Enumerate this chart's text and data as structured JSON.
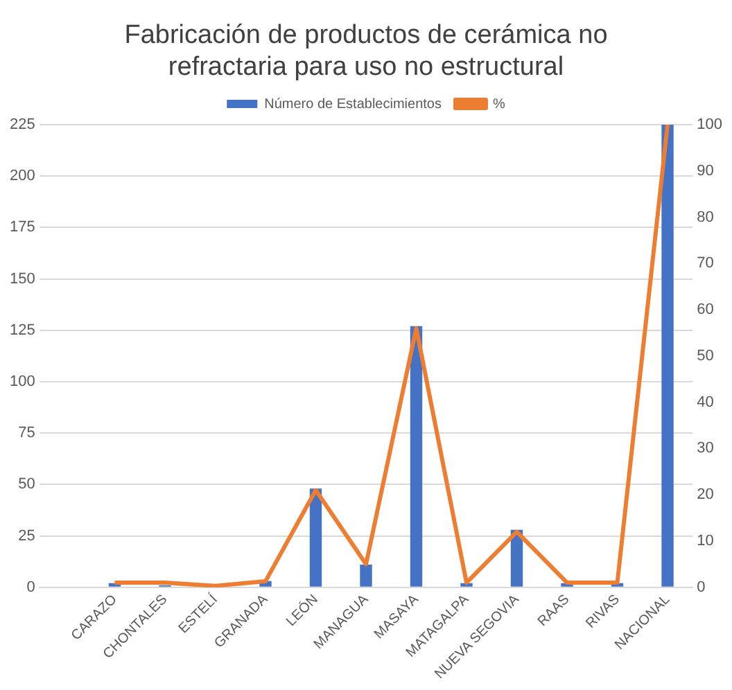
{
  "chart_data": {
    "type": "bar",
    "title": "Fabricación de productos de cerámica no refractaria para uso no estructural",
    "categories": [
      null,
      "CARAZO",
      "CHONTALES",
      "ESTELÍ",
      "GRANADA",
      "LEÓN",
      "MANAGUA",
      "MASAYA",
      "MATAGALPA",
      "NUEVA SEGOVIA",
      "RAAS",
      "RIVAS",
      "NACIONAL"
    ],
    "series": [
      {
        "name": "Número de Establecimientos",
        "color": "#4472c4",
        "values": [
          null,
          2,
          1,
          0,
          3,
          48,
          11,
          127,
          2,
          28,
          2,
          2,
          225
        ]
      },
      {
        "name": "%",
        "color": "#ed7d31",
        "type": "line",
        "axis": "y2",
        "values": [
          null,
          1,
          1,
          0.3,
          1.3,
          21,
          5,
          56,
          1,
          12,
          1,
          1,
          100
        ]
      }
    ],
    "ylim": [
      0,
      225
    ],
    "yticks": [
      0,
      25,
      50,
      75,
      100,
      125,
      150,
      175,
      200,
      225
    ],
    "y2lim": [
      0,
      100
    ],
    "y2ticks": [
      0,
      10,
      20,
      30,
      40,
      50,
      60,
      70,
      80,
      90,
      100
    ],
    "grid": "y",
    "legend": "top",
    "marker": "none",
    "line_style": "solid"
  }
}
